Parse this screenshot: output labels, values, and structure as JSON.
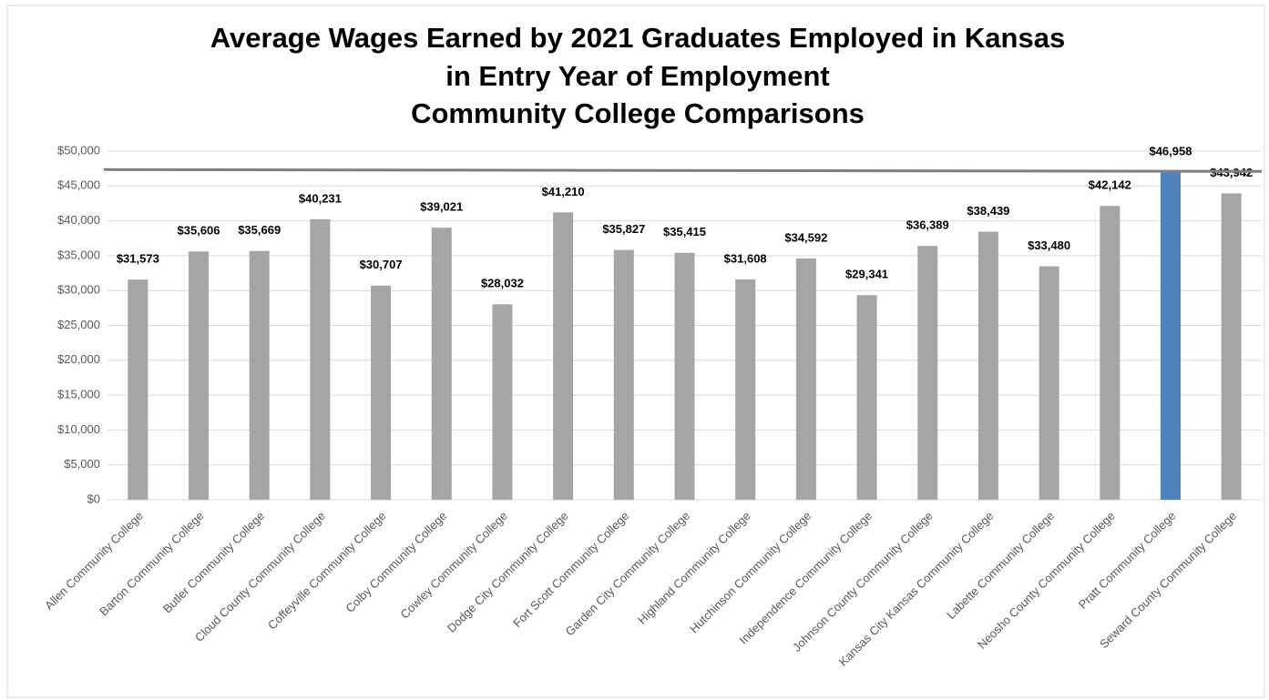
{
  "chart_data": {
    "type": "bar",
    "title": [
      "Average Wages Earned by 2021 Graduates Employed in Kansas",
      "in Entry Year of Employment",
      "Community College Comparisons"
    ],
    "categories": [
      "Allen Community College",
      "Barton Community College",
      "Butler Community College",
      "Cloud County Community College",
      "Coffeyville Community College",
      "Colby Community College",
      "Cowley Community College",
      "Dodge City Community College",
      "Fort Scott Community College",
      "Garden City Community College",
      "Highland Community College",
      "Hutchinson Community College",
      "Independence Community College",
      "Johnson County Community College",
      "Kansas City Kansas Community College",
      "Labette Community College",
      "Neosho County Community College",
      "Pratt Community College",
      "Seward County Community College"
    ],
    "values": [
      31573,
      35606,
      35669,
      40231,
      30707,
      39021,
      28032,
      41210,
      35827,
      35415,
      31608,
      34592,
      29341,
      36389,
      38439,
      33480,
      42142,
      46958,
      43942
    ],
    "value_labels": [
      "$31,573",
      "$35,606",
      "$35,669",
      "$40,231",
      "$30,707",
      "$39,021",
      "$28,032",
      "$41,210",
      "$35,827",
      "$35,415",
      "$31,608",
      "$34,592",
      "$29,341",
      "$36,389",
      "$38,439",
      "$33,480",
      "$42,142",
      "$46,958",
      "$43,942"
    ],
    "colors": [
      "#a5a5a5",
      "#a5a5a5",
      "#a5a5a5",
      "#a5a5a5",
      "#a5a5a5",
      "#a5a5a5",
      "#a5a5a5",
      "#a5a5a5",
      "#a5a5a5",
      "#a5a5a5",
      "#a5a5a5",
      "#a5a5a5",
      "#a5a5a5",
      "#a5a5a5",
      "#a5a5a5",
      "#a5a5a5",
      "#a5a5a5",
      "#4f81bd",
      "#a5a5a5"
    ],
    "ylim": [
      0,
      50000
    ],
    "yticks": [
      {
        "value": 0,
        "label": "$0"
      },
      {
        "value": 5000,
        "label": "$5,000"
      },
      {
        "value": 10000,
        "label": "$10,000"
      },
      {
        "value": 15000,
        "label": "$15,000"
      },
      {
        "value": 20000,
        "label": "$20,000"
      },
      {
        "value": 25000,
        "label": "$25,000"
      },
      {
        "value": 30000,
        "label": "$30,000"
      },
      {
        "value": 35000,
        "label": "$35,000"
      },
      {
        "value": 40000,
        "label": "$40,000"
      },
      {
        "value": 45000,
        "label": "$45,000"
      },
      {
        "value": 50000,
        "label": "$50,000"
      }
    ],
    "grid": true
  }
}
